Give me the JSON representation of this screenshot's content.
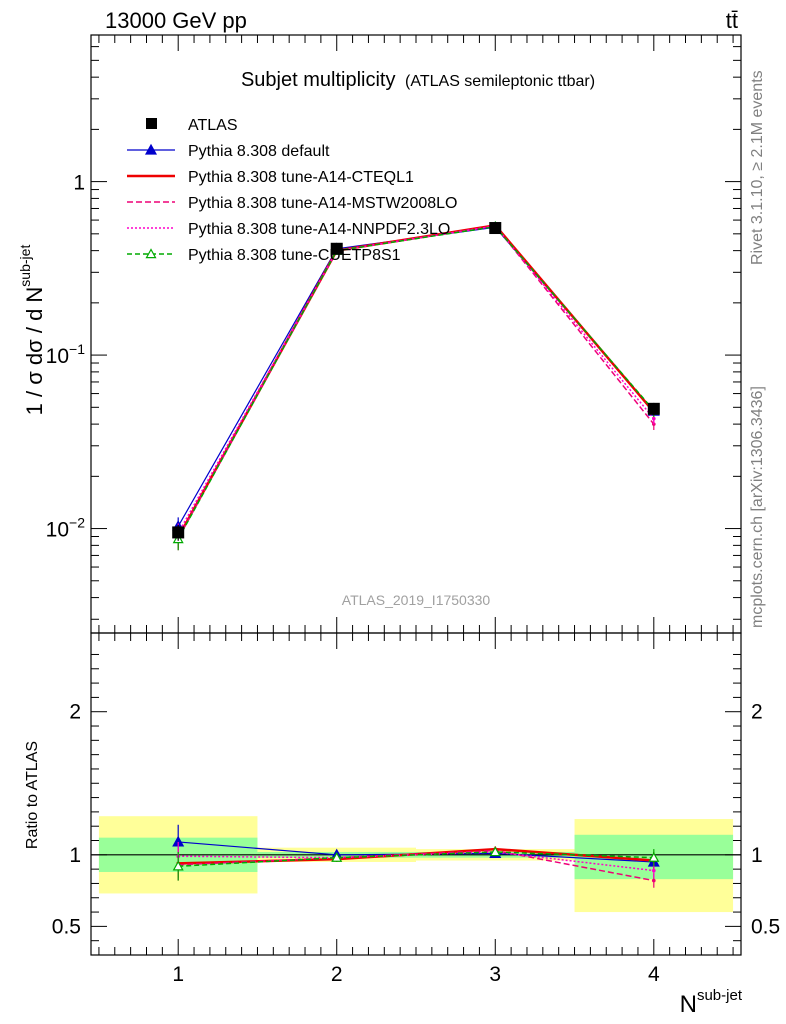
{
  "header": {
    "energy_label": "13000 GeV pp",
    "process_label": "tt̄"
  },
  "side_labels": {
    "rivet": "Rivet 3.1.10, ≥ 2.1M events",
    "mcplots": "mcplots.cern.ch [arXiv:1306.3436]"
  },
  "colors": {
    "data": "#000000",
    "default": "#0000cc",
    "cteql1": "#ee0000",
    "mstw": "#ee0077",
    "nnpdf": "#ff00cc",
    "cuetp8s1": "#00aa00",
    "band_inner": "#99ff99",
    "band_outer": "#ffff99"
  },
  "chart_data": [
    {
      "type": "line",
      "title": "Subjet multiplicity",
      "subtitle": "(ATLAS semileptonic ttbar)",
      "analysis_tag": "ATLAS_2019_I1750330",
      "ylabel_parts": {
        "main": "1 / σ dσ / d N",
        "sup": "sub-jet"
      },
      "yscale": "log",
      "ylim": [
        0.0025,
        7
      ],
      "xlim": [
        0.45,
        4.55
      ],
      "yticks": [
        {
          "value": 0.01,
          "base": "10",
          "exp": "−2"
        },
        {
          "value": 0.1,
          "base": "10",
          "exp": "−1"
        },
        {
          "value": 1,
          "base": "1",
          "exp": ""
        }
      ],
      "x": [
        1,
        2,
        3,
        4
      ],
      "legend_position": "top-left",
      "series": [
        {
          "name": "ATLAS",
          "key": "data",
          "style": "marker",
          "values": [
            0.0095,
            0.41,
            0.54,
            0.049
          ],
          "errors": [
            0.001,
            0.01,
            0.01,
            0.004
          ]
        },
        {
          "name": "Pythia 8.308 default",
          "key": "default",
          "style": "solid-thin-triangle",
          "values": [
            0.0103,
            0.41,
            0.545,
            0.0475
          ],
          "errors": [
            0.0013,
            0.008,
            0.008,
            0.004
          ]
        },
        {
          "name": "Pythia 8.308 tune-A14-CTEQL1",
          "key": "cteql1",
          "style": "solid-thick",
          "values": [
            0.0089,
            0.4,
            0.56,
            0.047
          ],
          "errors": [
            0.0012,
            0.006,
            0.006,
            0.004
          ]
        },
        {
          "name": "Pythia 8.308 tune-A14-MSTW2008LO",
          "key": "mstw",
          "style": "dashed",
          "values": [
            0.0088,
            0.4,
            0.555,
            0.04
          ],
          "errors": [
            0.0013,
            0.006,
            0.006,
            0.003
          ]
        },
        {
          "name": "Pythia 8.308 tune-A14-NNPDF2.3LO",
          "key": "nnpdf",
          "style": "dotted",
          "values": [
            0.0094,
            0.4,
            0.555,
            0.043
          ],
          "errors": [
            0.0013,
            0.006,
            0.006,
            0.003
          ]
        },
        {
          "name": "Pythia 8.308 tune-CUETP8S1",
          "key": "cuetp8s1",
          "style": "dashed-open-triangle",
          "values": [
            0.0087,
            0.4,
            0.55,
            0.048
          ],
          "errors": [
            0.0012,
            0.006,
            0.006,
            0.004
          ]
        }
      ]
    },
    {
      "type": "line",
      "ylabel": "Ratio to ATLAS",
      "xlabel_parts": {
        "main": "N",
        "sup": "sub-jet"
      },
      "ylim": [
        0.3,
        2.55
      ],
      "xlim": [
        0.45,
        4.55
      ],
      "yticks": [
        0.5,
        1,
        2
      ],
      "xticks": [
        1,
        2,
        3,
        4
      ],
      "reference": 1,
      "bands": [
        {
          "x": [
            0.5,
            1.5
          ],
          "inner": [
            0.88,
            1.12
          ],
          "outer": [
            0.73,
            1.27
          ]
        },
        {
          "x": [
            1.5,
            2.5
          ],
          "inner": [
            0.98,
            1.02
          ],
          "outer": [
            0.95,
            1.05
          ]
        },
        {
          "x": [
            2.5,
            3.5
          ],
          "inner": [
            0.98,
            1.02
          ],
          "outer": [
            0.96,
            1.04
          ]
        },
        {
          "x": [
            3.5,
            4.5
          ],
          "inner": [
            0.83,
            1.14
          ],
          "outer": [
            0.6,
            1.25
          ]
        }
      ],
      "series": [
        {
          "name": "Pythia 8.308 default",
          "key": "default",
          "style": "solid-thin-triangle",
          "values": [
            1.09,
            1.0,
            1.01,
            0.95
          ],
          "errors": [
            0.12,
            0.02,
            0.02,
            0.07
          ]
        },
        {
          "name": "Pythia 8.308 tune-A14-CTEQL1",
          "key": "cteql1",
          "style": "solid-thick",
          "values": [
            0.94,
            0.97,
            1.04,
            0.96
          ],
          "errors": [
            0.1,
            0.02,
            0.02,
            0.06
          ]
        },
        {
          "name": "Pythia 8.308 tune-A14-MSTW2008LO",
          "key": "mstw",
          "style": "dashed",
          "values": [
            0.93,
            0.98,
            1.03,
            0.82
          ],
          "errors": [
            0.11,
            0.02,
            0.02,
            0.05
          ]
        },
        {
          "name": "Pythia 8.308 tune-A14-NNPDF2.3LO",
          "key": "nnpdf",
          "style": "dotted",
          "values": [
            0.99,
            0.98,
            1.02,
            0.89
          ],
          "errors": [
            0.1,
            0.02,
            0.02,
            0.05
          ]
        },
        {
          "name": "Pythia 8.308 tune-CUETP8S1",
          "key": "cuetp8s1",
          "style": "dashed-open-triangle",
          "values": [
            0.92,
            0.98,
            1.02,
            0.98
          ],
          "errors": [
            0.1,
            0.02,
            0.02,
            0.06
          ]
        }
      ]
    }
  ]
}
